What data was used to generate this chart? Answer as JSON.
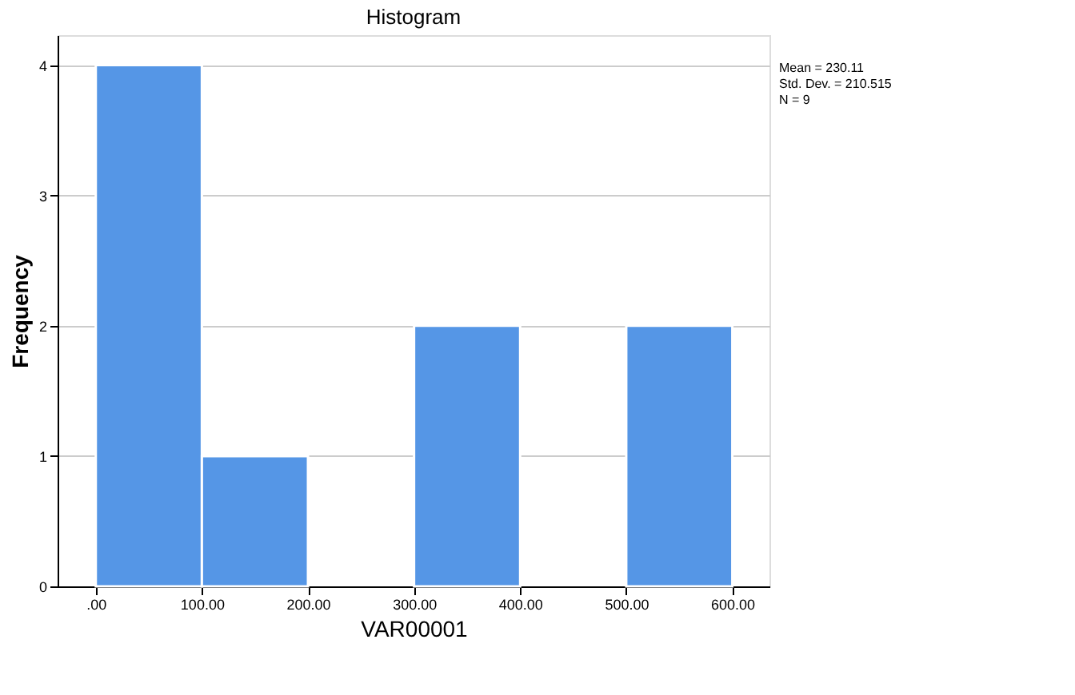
{
  "chart_data": {
    "type": "histogram",
    "title": "Histogram",
    "xlabel": "VAR00001",
    "ylabel": "Frequency",
    "bins": [
      0,
      100,
      200,
      300,
      400,
      500,
      600
    ],
    "values": [
      4,
      1,
      0,
      2,
      0,
      2
    ],
    "color": "#5596e6",
    "xlim": [
      -36,
      635
    ],
    "ylim": [
      0,
      4.23
    ],
    "xticks": [
      {
        "value": 0,
        "label": ".00"
      },
      {
        "value": 100,
        "label": "100.00"
      },
      {
        "value": 200,
        "label": "200.00"
      },
      {
        "value": 300,
        "label": "300.00"
      },
      {
        "value": 400,
        "label": "400.00"
      },
      {
        "value": 500,
        "label": "500.00"
      },
      {
        "value": 600,
        "label": "600.00"
      }
    ],
    "yticks": [
      0,
      1,
      2,
      3,
      4
    ],
    "grid": "y",
    "legend": false,
    "annotations": [
      "Mean = 230.11",
      "Std. Dev. = 210.515",
      "N = 9"
    ]
  }
}
